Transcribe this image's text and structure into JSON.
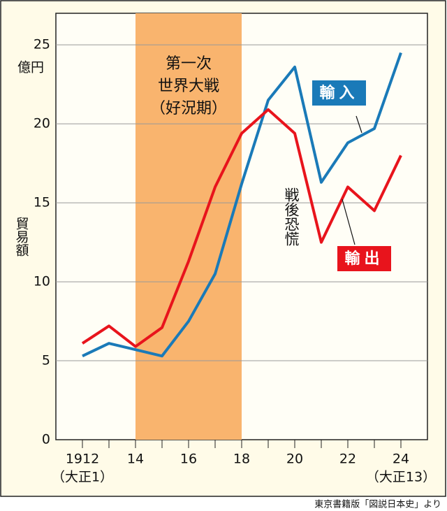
{
  "chart_data": {
    "type": "line",
    "y_unit_label": "億円",
    "ylabel": "貿易額",
    "x": [
      1912,
      1913,
      1914,
      1915,
      1916,
      1917,
      1918,
      1919,
      1920,
      1921,
      1922,
      1923,
      1924
    ],
    "series": [
      {
        "name": "輸入",
        "color": "#1a7ab8",
        "values": [
          5.3,
          6.1,
          5.7,
          5.3,
          7.5,
          10.5,
          16.2,
          21.5,
          23.6,
          16.3,
          18.8,
          19.7,
          24.5
        ]
      },
      {
        "name": "輸出",
        "color": "#e8141c",
        "values": [
          6.1,
          7.2,
          5.9,
          7.1,
          11.3,
          16.0,
          19.4,
          20.9,
          19.4,
          12.5,
          16.0,
          14.5,
          18.0
        ]
      }
    ],
    "xlim": [
      1911,
      1925
    ],
    "xticks": [
      {
        "value": 1912,
        "label": "1912"
      },
      {
        "value": 1914,
        "label": "14"
      },
      {
        "value": 1916,
        "label": "16"
      },
      {
        "value": 1918,
        "label": "18"
      },
      {
        "value": 1920,
        "label": "20"
      },
      {
        "value": 1922,
        "label": "22"
      },
      {
        "value": 1924,
        "label": "24"
      }
    ],
    "x_minor_ticks": [
      1913,
      1915,
      1917,
      1919,
      1921,
      1923
    ],
    "x_sublabels": [
      {
        "x": 1912,
        "text": "（大正1）"
      },
      {
        "x": 1924,
        "text": "（大正13）"
      }
    ],
    "ylim": [
      0,
      27
    ],
    "yticks": [
      0,
      5,
      10,
      15,
      20,
      25
    ],
    "grid": true,
    "shade": {
      "from": 1914,
      "to": 1918,
      "color": "#f9b46e",
      "lines": [
        "第一次",
        "世界大戦",
        "（好況期）"
      ]
    },
    "annotation": "戦後恐慌",
    "source": "東京書籍版「図説日本史」より"
  }
}
